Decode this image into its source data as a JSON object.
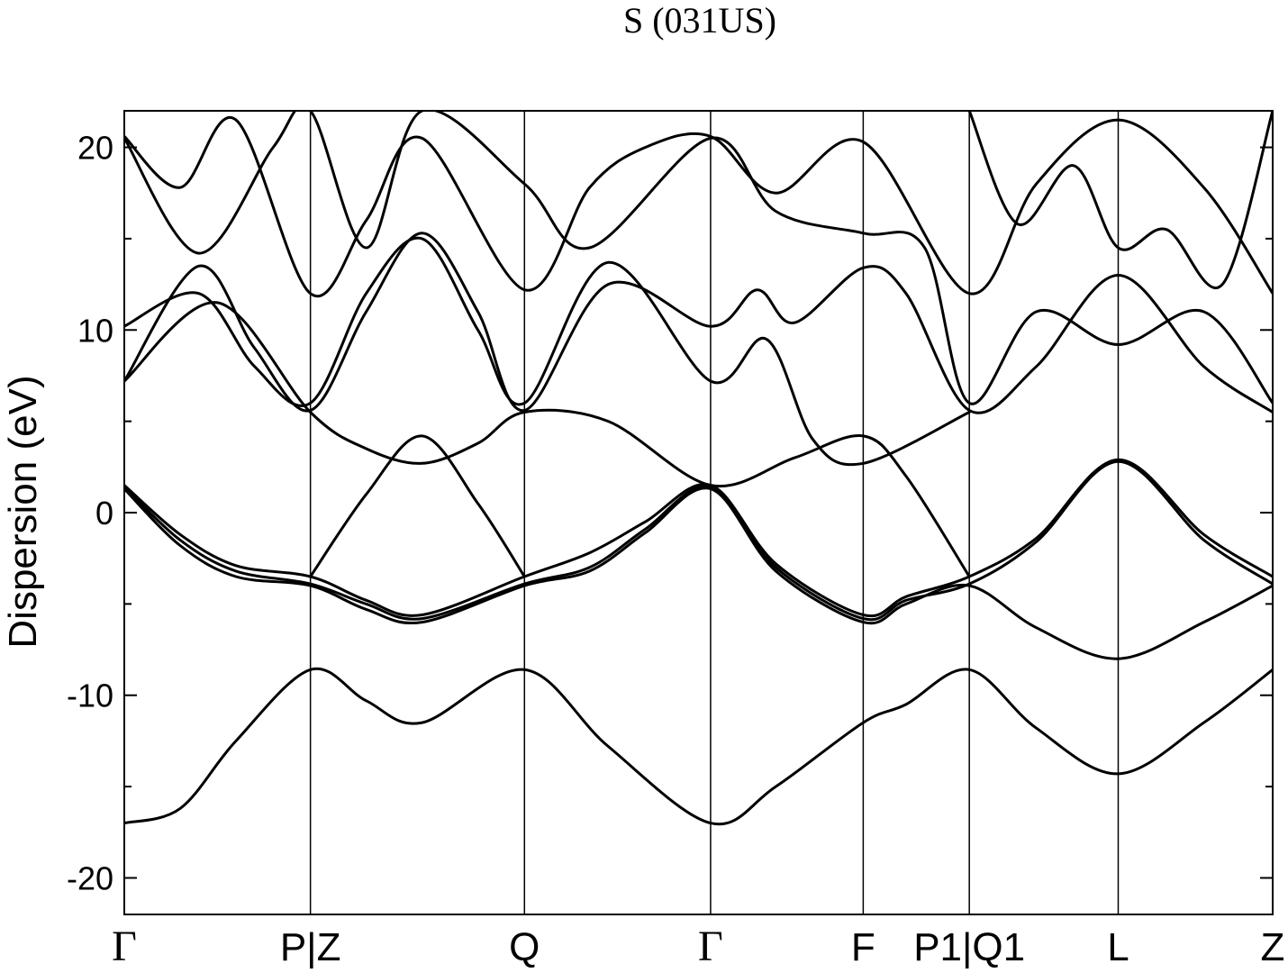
{
  "chart_data": {
    "type": "line",
    "title": "S (031US)",
    "xlabel": "",
    "ylabel": "Dispersion (eV)",
    "ylim": [
      -22,
      22
    ],
    "yticks": [
      20,
      10,
      0,
      -10,
      -20
    ],
    "ytick_labels": [
      "20",
      "10",
      "0",
      "-10",
      "-20"
    ],
    "grid": false,
    "legend": "none",
    "line_color": "#000000",
    "kpoints": [
      {
        "label": "Γ",
        "x": 0.0
      },
      {
        "label": "P|Z",
        "x": 1.0
      },
      {
        "label": "Q",
        "x": 2.15
      },
      {
        "label": "Γ",
        "x": 3.15
      },
      {
        "label": "F",
        "x": 3.97
      },
      {
        "label": "P1|Q1",
        "x": 4.54
      },
      {
        "label": "L",
        "x": 5.34
      },
      {
        "label": "Z",
        "x": 6.17
      }
    ],
    "series": [
      {
        "x": [
          0,
          0.3,
          0.6,
          1.0,
          1.3,
          1.6,
          2.15,
          2.6,
          3.15,
          3.5,
          3.97,
          4.2,
          4.54,
          4.9,
          5.34,
          5.8,
          6.17
        ],
        "y": [
          -17.0,
          -16.2,
          -12.5,
          -8.6,
          -10.3,
          -11.5,
          -8.6,
          -12.8,
          -17.0,
          -15.0,
          -11.5,
          -10.5,
          -8.6,
          -11.8,
          -14.3,
          -11.5,
          -8.6
        ]
      },
      {
        "x": [
          0,
          0.3,
          0.6,
          1.0,
          1.3,
          1.6,
          2.15,
          2.5,
          2.8,
          3.15,
          3.5,
          3.97,
          4.2,
          4.54,
          4.9,
          5.34,
          5.8,
          6.17
        ],
        "y": [
          1.5,
          -1.2,
          -2.9,
          -3.5,
          -4.8,
          -5.6,
          -3.5,
          -2.2,
          -0.5,
          1.5,
          -2.8,
          -5.6,
          -4.6,
          -3.5,
          -1.4,
          2.9,
          -1.2,
          -3.5
        ]
      },
      {
        "x": [
          0,
          0.3,
          0.6,
          1.0,
          1.3,
          1.6,
          2.15,
          2.5,
          2.8,
          3.15,
          3.5,
          3.97,
          4.2,
          4.54,
          4.9,
          5.34,
          5.8,
          6.17
        ],
        "y": [
          1.4,
          -1.5,
          -3.2,
          -3.9,
          -5.0,
          -5.8,
          -3.9,
          -3.0,
          -0.9,
          1.4,
          -3.0,
          -5.8,
          -4.8,
          -3.9,
          -1.6,
          2.8,
          -1.5,
          -3.9
        ]
      },
      {
        "x": [
          0,
          0.3,
          0.6,
          1.0,
          1.3,
          1.6,
          2.15,
          2.5,
          2.8,
          3.15,
          3.5,
          3.97,
          4.2,
          4.54,
          4.9,
          5.34,
          5.8,
          6.17
        ],
        "y": [
          1.3,
          -1.8,
          -3.5,
          -4.0,
          -5.3,
          -6.0,
          -4.0,
          -3.2,
          -1.1,
          1.3,
          -3.2,
          -6.0,
          -5.0,
          -4.0,
          -6.3,
          -8.0,
          -6.0,
          -4.0
        ]
      },
      {
        "x": [
          0,
          0.5,
          1.0,
          1.3,
          1.6,
          1.9,
          2.15,
          2.6,
          3.15,
          3.6,
          3.97,
          4.2,
          4.54
        ],
        "y": [
          7.2,
          11.5,
          5.5,
          3.5,
          2.7,
          3.8,
          5.5,
          5.0,
          1.5,
          3.0,
          4.2,
          2.0,
          -3.5
        ]
      },
      {
        "x": [
          1.0,
          1.3,
          1.6,
          1.9,
          2.15
        ],
        "y": [
          -3.5,
          1.0,
          4.2,
          0.5,
          -3.5
        ]
      },
      {
        "x": [
          0,
          0.4,
          0.7,
          1.0,
          1.3,
          1.6,
          1.9,
          2.15,
          2.6,
          3.15,
          3.45,
          3.7,
          3.97,
          4.54
        ],
        "y": [
          10.2,
          12.0,
          8.0,
          6.0,
          12.0,
          15.0,
          10.0,
          6.0,
          13.7,
          7.2,
          9.5,
          4.0,
          2.7,
          5.5
        ]
      },
      {
        "x": [
          0,
          0.4,
          0.7,
          1.0,
          1.3,
          1.6,
          1.9,
          2.15,
          2.6,
          3.15,
          3.4,
          3.6,
          3.97,
          4.2,
          4.54,
          4.9,
          5.34,
          5.8,
          6.17
        ],
        "y": [
          7.2,
          13.5,
          9.0,
          5.6,
          11.0,
          15.3,
          11.0,
          5.6,
          12.5,
          10.2,
          12.2,
          10.4,
          13.4,
          12.0,
          5.6,
          8.0,
          13.0,
          8.0,
          5.5
        ]
      },
      {
        "x": [
          0,
          0.3,
          0.6,
          1.0,
          1.3,
          1.6,
          2.15,
          2.5,
          2.8,
          3.15,
          3.5,
          3.97,
          4.54,
          4.9,
          5.34,
          5.8,
          6.17
        ],
        "y": [
          20.6,
          17.8,
          21.5,
          12.0,
          16.0,
          20.5,
          12.2,
          17.8,
          20.0,
          20.6,
          17.5,
          20.3,
          12.0,
          18.0,
          21.5,
          17.8,
          12.0
        ]
      },
      {
        "x": [
          0,
          0.4,
          0.8,
          1.0,
          1.3,
          1.6,
          2.15,
          2.5,
          3.15,
          3.5,
          3.97,
          4.3,
          4.54,
          4.9,
          5.34,
          5.8,
          6.17
        ],
        "y": [
          20.5,
          14.2,
          20.0,
          22.0,
          14.5,
          22.0,
          18.0,
          14.5,
          20.5,
          16.5,
          15.3,
          14.5,
          6.0,
          11.0,
          9.2,
          11.0,
          6.0
        ]
      },
      {
        "x": [
          4.54,
          4.8,
          5.1,
          5.34,
          5.6,
          5.9,
          6.17
        ],
        "y": [
          22.0,
          15.8,
          19.0,
          14.5,
          15.5,
          12.5,
          22.0
        ]
      }
    ]
  }
}
